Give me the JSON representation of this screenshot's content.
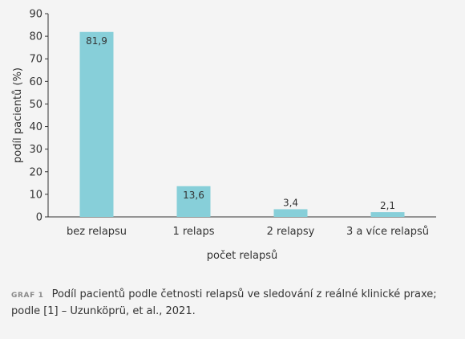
{
  "chart_data": {
    "type": "bar",
    "categories": [
      "bez relapsu",
      "1 relaps",
      "2 relapsy",
      "3 a více relapsů"
    ],
    "values": [
      81.9,
      13.6,
      3.4,
      2.1
    ],
    "value_labels": [
      "81,9",
      "13,6",
      "3,4",
      "2,1"
    ],
    "xlabel": "počet relapsů",
    "ylabel": "podíl pacientů (%)",
    "ylim": [
      0,
      90
    ],
    "yticks": [
      "0",
      "10",
      "20",
      "30",
      "40",
      "50",
      "60",
      "70",
      "80",
      "90"
    ],
    "bar_color": "#87cfd9",
    "grid": false
  },
  "caption": {
    "tag": "GRAF 1",
    "text": "Podíl pacientů podle četnosti relapsů ve sledování z reálné klinické praxe; podle [1] – Uzunköprü, et al., 2021."
  }
}
